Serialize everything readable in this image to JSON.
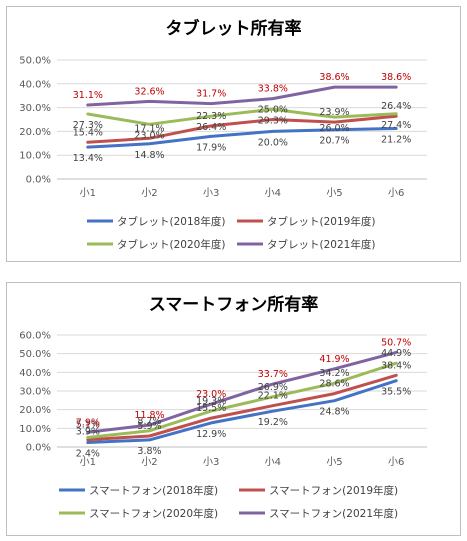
{
  "chart_data": [
    {
      "type": "line",
      "title": "タブレット所有率",
      "categories": [
        "小1",
        "小2",
        "小3",
        "小4",
        "小5",
        "小6"
      ],
      "yticks": [
        "0.0%",
        "10.0%",
        "20.0%",
        "30.0%",
        "40.0%",
        "50.0%"
      ],
      "ylim": [
        0,
        50
      ],
      "grid": true,
      "legend_position": "bottom",
      "series": [
        {
          "name": "タブレット(2018年度)",
          "color": "#4472c4",
          "label_color": "#404040",
          "label_pos": "below",
          "values": [
            13.4,
            14.8,
            17.9,
            20.0,
            20.7,
            21.2
          ],
          "labels": [
            "13.4%",
            "14.8%",
            "17.9%",
            "20.0%",
            "20.7%",
            "21.2%"
          ]
        },
        {
          "name": "タブレット(2019年度)",
          "color": "#c0504d",
          "label_color": "#404040",
          "label_pos": "above",
          "values": [
            15.4,
            17.1,
            22.3,
            25.0,
            23.9,
            26.4
          ],
          "labels": [
            "15.4%",
            "17.1%",
            "22.3%",
            "25.0%",
            "23.9%",
            "26.4%"
          ]
        },
        {
          "name": "タブレット(2020年度)",
          "color": "#9bbb59",
          "label_color": "#404040",
          "label_pos": "below",
          "values": [
            27.3,
            23.0,
            26.4,
            29.3,
            26.0,
            27.4
          ],
          "labels": [
            "27.3%",
            "23.0%",
            "26.4%",
            "29.3%",
            "26.0%",
            "27.4%"
          ]
        },
        {
          "name": "タブレット(2021年度)",
          "color": "#8064a2",
          "label_color": "#c00000",
          "label_pos": "above",
          "values": [
            31.1,
            32.6,
            31.7,
            33.8,
            38.6,
            38.6
          ],
          "labels": [
            "31.1%",
            "32.6%",
            "31.7%",
            "33.8%",
            "38.6%",
            "38.6%"
          ]
        }
      ]
    },
    {
      "type": "line",
      "title": "スマートフォン所有率",
      "categories": [
        "小1",
        "小2",
        "小3",
        "小4",
        "小5",
        "小6"
      ],
      "yticks": [
        "0.0%",
        "10.0%",
        "20.0%",
        "30.0%",
        "40.0%",
        "50.0%",
        "60.0%"
      ],
      "ylim": [
        0,
        60
      ],
      "grid": true,
      "legend_position": "bottom",
      "series": [
        {
          "name": "スマートフォン(2018年度)",
          "color": "#4472c4",
          "label_color": "#404040",
          "label_pos": "below",
          "values": [
            2.4,
            3.8,
            12.9,
            19.2,
            24.8,
            35.5
          ],
          "labels": [
            "2.4%",
            "3.8%",
            "12.9%",
            "19.2%",
            "24.8%",
            "35.5%"
          ]
        },
        {
          "name": "スマートフォン(2019年度)",
          "color": "#c0504d",
          "label_color": "#404040",
          "label_pos": "above",
          "values": [
            3.9,
            5.9,
            15.5,
            22.1,
            28.6,
            38.4
          ],
          "labels": [
            "3.9%",
            "5.9%",
            "15.5%",
            "22.1%",
            "28.6%",
            "38.4%"
          ]
        },
        {
          "name": "スマートフォン(2020年度)",
          "color": "#9bbb59",
          "label_color": "#404040",
          "label_pos": "above",
          "values": [
            5.1,
            8.7,
            19.3,
            26.9,
            34.2,
            44.9
          ],
          "labels": [
            "5.1%",
            "8.7%",
            "19.3%",
            "26.9%",
            "34.2%",
            "44.9%"
          ]
        },
        {
          "name": "スマートフォン(2021年度)",
          "color": "#8064a2",
          "label_color": "#c00000",
          "label_pos": "above",
          "values": [
            7.9,
            11.8,
            23.0,
            33.7,
            41.9,
            50.7
          ],
          "labels": [
            "7.9%",
            "11.8%",
            "23.0%",
            "33.7%",
            "41.9%",
            "50.7%"
          ]
        }
      ]
    }
  ]
}
